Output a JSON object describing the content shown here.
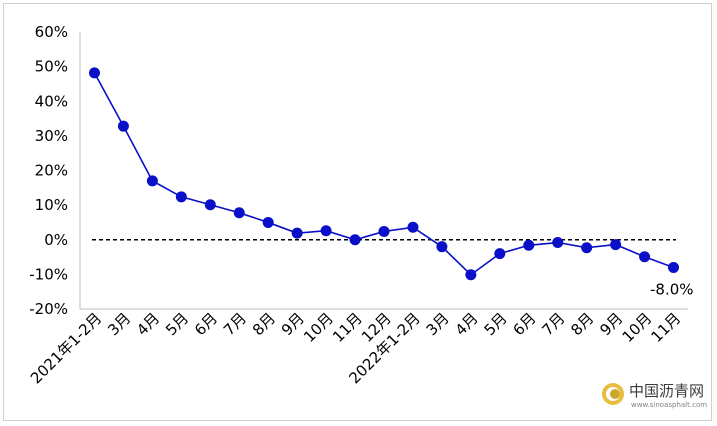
{
  "chart_data": {
    "type": "line",
    "categories": [
      "2021年1-2月",
      "3月",
      "4月",
      "5月",
      "6月",
      "7月",
      "8月",
      "9月",
      "10月",
      "11月",
      "12月",
      "2022年1-2月",
      "3月",
      "4月",
      "5月",
      "6月",
      "7月",
      "8月",
      "9月",
      "10月",
      "11月"
    ],
    "series": [
      {
        "values": [
          48.2,
          32.8,
          17.0,
          12.4,
          10.1,
          7.8,
          5.0,
          1.9,
          2.6,
          0.0,
          2.4,
          3.6,
          -2.0,
          -10.1,
          -4.0,
          -1.6,
          -0.8,
          -2.3,
          -1.4,
          -4.9,
          -8.0
        ]
      }
    ],
    "yticks": [
      "60%",
      "50%",
      "40%",
      "30%",
      "20%",
      "10%",
      "0%",
      "-10%",
      "-20%"
    ],
    "ylim": [
      -20,
      60
    ],
    "reference_line": 0,
    "annotation": "-8.0%",
    "color": "#0a10c8",
    "xlabel": "",
    "ylabel": ""
  },
  "watermark": {
    "name": "中国沥青网",
    "url": "www.sinoasphalt.com"
  }
}
